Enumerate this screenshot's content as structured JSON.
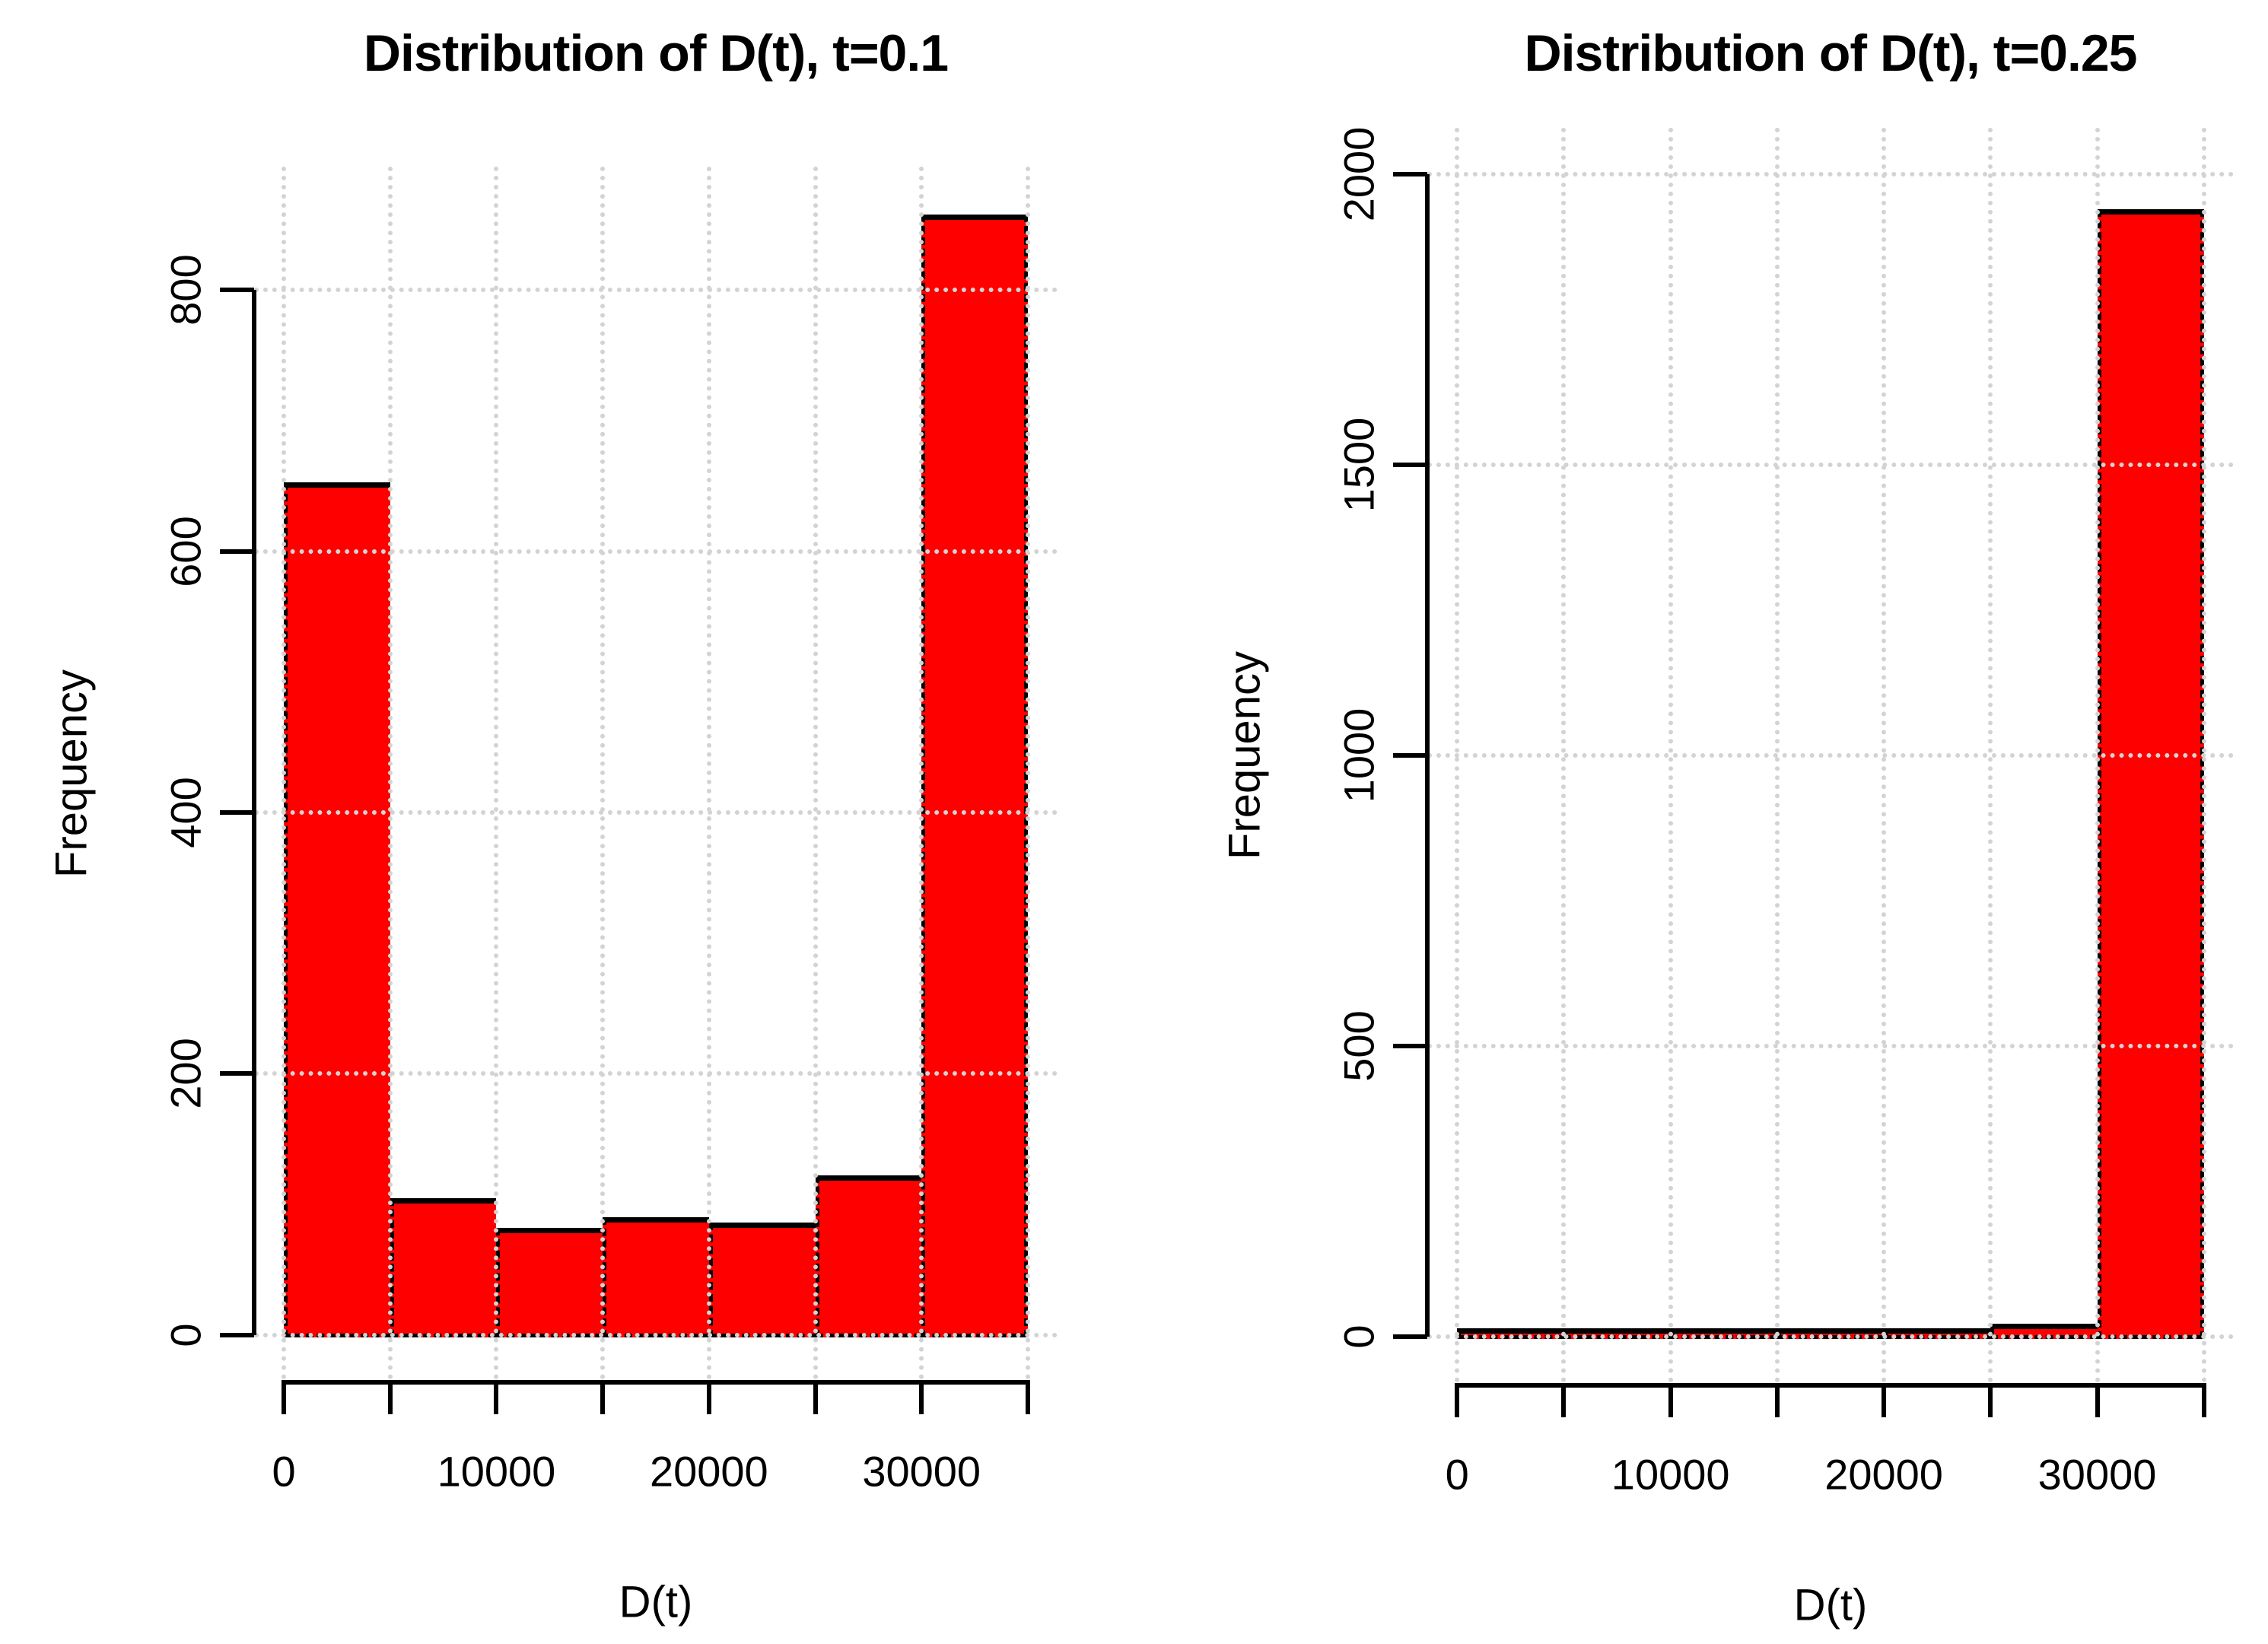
{
  "figure": {
    "background": "#FFFFFF",
    "text_color": "#000000"
  },
  "chart_data": [
    {
      "type": "bar",
      "title": "Distribution of D(t), t=0.1",
      "xlabel": "D(t)",
      "ylabel": "Frequency",
      "bin_start": 0,
      "bin_width": 5000,
      "values": [
        653,
        105,
        82,
        90,
        86,
        122,
        858
      ],
      "xlim": [
        0,
        35000
      ],
      "ylim": [
        0,
        860
      ],
      "x_ticks": [
        0,
        5000,
        10000,
        15000,
        20000,
        25000,
        30000,
        35000
      ],
      "x_tick_labels": [
        "0",
        "",
        "10000",
        "",
        "20000",
        "",
        "30000",
        ""
      ],
      "y_ticks": [
        0,
        200,
        400,
        600,
        800
      ],
      "y_tick_labels": [
        "0",
        "200",
        "400",
        "600",
        "800"
      ],
      "grid": true,
      "bar_color": "#FF0000",
      "bar_border_color": "#000000",
      "grid_color": "#D3D3D3",
      "axis_color": "#000000"
    },
    {
      "type": "bar",
      "title": "Distribution of D(t), t=0.25",
      "xlabel": "D(t)",
      "ylabel": "Frequency",
      "bin_start": 0,
      "bin_width": 5000,
      "values": [
        8,
        2,
        3,
        5,
        14,
        22,
        1940
      ],
      "xlim": [
        0,
        35000
      ],
      "ylim": [
        0,
        2000
      ],
      "x_ticks": [
        0,
        5000,
        10000,
        15000,
        20000,
        25000,
        30000,
        35000
      ],
      "x_tick_labels": [
        "0",
        "",
        "10000",
        "",
        "20000",
        "",
        "30000",
        ""
      ],
      "y_ticks": [
        0,
        500,
        1000,
        1500,
        2000
      ],
      "y_tick_labels": [
        "0",
        "500",
        "1000",
        "1500",
        "2000"
      ],
      "grid": true,
      "bar_color": "#FF0000",
      "bar_border_color": "#000000",
      "grid_color": "#D3D3D3",
      "axis_color": "#000000"
    }
  ]
}
